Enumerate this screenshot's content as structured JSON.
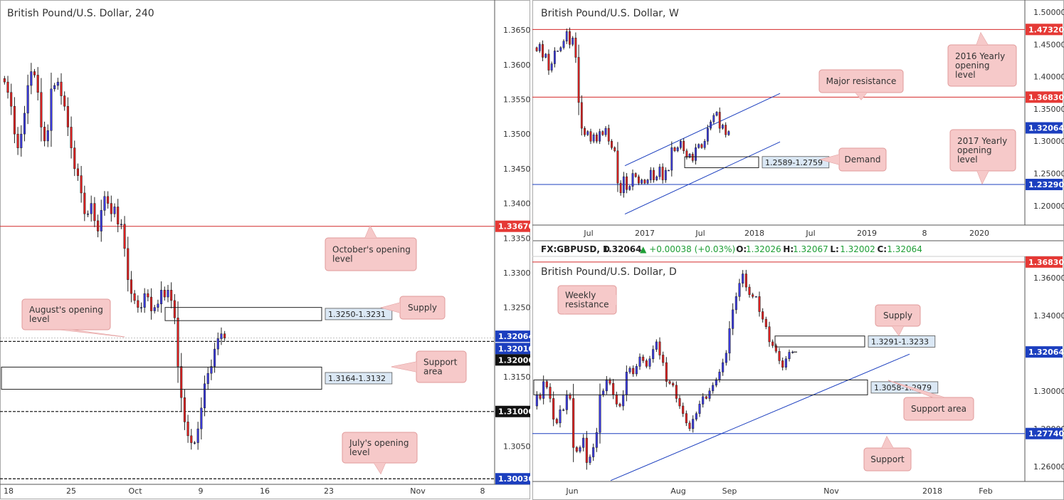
{
  "colors": {
    "bull": "#3a3ae0",
    "bear": "#e02020",
    "red_line": "#d42a2a",
    "blue_line": "#1c3fbf",
    "callout_fill": "#f6c9c9",
    "callout_stroke": "#e09a9a",
    "red_tag": "#e53935",
    "blue_tag": "#1c3fbf",
    "black_tag": "#111111",
    "box_label_fill": "#dbe8f5"
  },
  "charts": {
    "h4": {
      "title": "British Pound/U.S. Dollar, 240",
      "price_labels": [
        "1.36500",
        "1.36000",
        "1.35500",
        "1.35000",
        "1.34500",
        "1.34000",
        "1.33500",
        "1.33000",
        "1.32500",
        "1.31500",
        "1.30500"
      ],
      "time_labels": [
        "18",
        "25",
        "Oct",
        "9",
        "16",
        "23",
        "Nov",
        "8"
      ],
      "tags": {
        "octopen": "1.33670",
        "last": "1.32064",
        "r1": "1.32010",
        "r2": "1.32000",
        "s1": "1.31000",
        "july": "1.30030"
      },
      "zones": {
        "supply": "1.3250-1.3231",
        "support": "1.3164-1.3132"
      },
      "callouts": {
        "supply": "Supply",
        "support": "Support area",
        "october": "October's opening level",
        "august": "August's opening level",
        "july": "July's opening level"
      }
    },
    "weekly": {
      "title": "British Pound/U.S. Dollar, W",
      "price_labels": [
        "1.50000",
        "1.45000",
        "1.40000",
        "1.35000",
        "1.30000",
        "1.25000",
        "1.20000"
      ],
      "time_labels": [
        "Jul",
        "2017",
        "Jul",
        "2018",
        "Jul",
        "2019",
        "8",
        "2020"
      ],
      "tags": {
        "y2016": "1.47320",
        "major": "1.36830",
        "last": "1.32064",
        "y2017": "1.23290"
      },
      "zones": {
        "demand": "1.2589-1.2759"
      },
      "callouts": {
        "major": "Major resistance",
        "demand": "Demand",
        "y2016": "2016 Yearly opening level",
        "y2017": "2017 Yearly opening level"
      }
    },
    "daily": {
      "title": "British Pound/U.S. Dollar, D",
      "info": {
        "symbol": "FX:GBPUSD, D",
        "price": "1.32064",
        "change": "▲ +0.00038 (+0.03%)",
        "o_lbl": "O:",
        "o": "1.32026",
        "h_lbl": "H:",
        "h": "1.32067",
        "l_lbl": "L:",
        "l": "1.32002",
        "c_lbl": "C:",
        "c": "1.32064"
      },
      "price_labels": [
        "1.36000",
        "1.34000",
        "1.30000",
        "1.28000",
        "1.26000"
      ],
      "time_labels": [
        "Jun",
        "Aug",
        "Sep",
        "Nov",
        "2018",
        "Feb"
      ],
      "tags": {
        "weekly": "1.36830",
        "last": "1.32064",
        "support": "1.27740"
      },
      "zones": {
        "supply": "1.3291-1.3233",
        "support": "1.3058-1.2979"
      },
      "callouts": {
        "weekly": "Weekly resistance",
        "supply": "Supply",
        "support_area": "Support area",
        "support": "Support"
      }
    }
  },
  "chart_data": [
    {
      "type": "candlestick",
      "title": "British Pound/U.S. Dollar, 240",
      "ylim": [
        1.2995,
        1.3685
      ],
      "levels": [
        {
          "label": "October's opening level",
          "value": 1.3367
        },
        {
          "label": "August's opening level",
          "value": 1.3201
        },
        {
          "value": 1.32
        },
        {
          "value": 1.31
        },
        {
          "label": "July's opening level",
          "value": 1.3003
        }
      ],
      "zones": [
        {
          "label": "Supply",
          "range": [
            1.3231,
            1.325
          ]
        },
        {
          "label": "Support area",
          "range": [
            1.3132,
            1.3164
          ]
        }
      ],
      "path": [
        1.358,
        1.3575,
        1.356,
        1.354,
        1.35,
        1.348,
        1.35,
        1.353,
        1.357,
        1.359,
        1.3585,
        1.356,
        1.351,
        1.349,
        1.3505,
        1.3565,
        1.357,
        1.3575,
        1.3555,
        1.354,
        1.351,
        1.348,
        1.345,
        1.344,
        1.3415,
        1.3385,
        1.3385,
        1.34,
        1.3375,
        1.336,
        1.339,
        1.341,
        1.34,
        1.3385,
        1.3395,
        1.337,
        1.337,
        1.3335,
        1.329,
        1.327,
        1.326,
        1.325,
        1.325,
        1.327,
        1.3265,
        1.3245,
        1.325,
        1.3255,
        1.3275,
        1.3265,
        1.3275,
        1.326,
        1.3235,
        1.3165,
        1.312,
        1.3085,
        1.3065,
        1.3055,
        1.3055,
        1.3075,
        1.3105,
        1.314,
        1.3155,
        1.3165,
        1.319,
        1.3205,
        1.3212,
        1.3206
      ]
    },
    {
      "type": "candlestick",
      "title": "British Pound/U.S. Dollar, W",
      "ylim": [
        1.17,
        1.51
      ],
      "levels": [
        {
          "label": "2016 Yearly opening level",
          "value": 1.4732
        },
        {
          "label": "Major resistance",
          "value": 1.3683
        },
        {
          "label": "2017 Yearly opening level",
          "value": 1.2329
        }
      ],
      "zones": [
        {
          "label": "Demand",
          "range": [
            1.2589,
            1.2759
          ]
        }
      ],
      "path": [
        1.445,
        1.44,
        1.45,
        1.43,
        1.435,
        1.41,
        1.42,
        1.44,
        1.44,
        1.445,
        1.455,
        1.47,
        1.45,
        1.46,
        1.43,
        1.36,
        1.32,
        1.31,
        1.315,
        1.3,
        1.31,
        1.3,
        1.315,
        1.31,
        1.32,
        1.3,
        1.29,
        1.285,
        1.235,
        1.22,
        1.245,
        1.225,
        1.23,
        1.25,
        1.245,
        1.235,
        1.24,
        1.235,
        1.24,
        1.255,
        1.24,
        1.245,
        1.26,
        1.24,
        1.255,
        1.255,
        1.29,
        1.285,
        1.29,
        1.3,
        1.285,
        1.275,
        1.28,
        1.27,
        1.29,
        1.295,
        1.29,
        1.3,
        1.32,
        1.33,
        1.34,
        1.345,
        1.32,
        1.325,
        1.31,
        1.315
      ]
    },
    {
      "type": "candlestick",
      "title": "British Pound/U.S. Dollar, D",
      "ylim": [
        1.252,
        1.369
      ],
      "levels": [
        {
          "label": "Weekly resistance",
          "value": 1.3683
        },
        {
          "label": "Support",
          "value": 1.2774
        }
      ],
      "zones": [
        {
          "label": "Supply",
          "range": [
            1.3233,
            1.3291
          ]
        },
        {
          "label": "Support area",
          "range": [
            1.2979,
            1.3058
          ]
        }
      ],
      "path": [
        1.292,
        1.298,
        1.296,
        1.305,
        1.302,
        1.296,
        1.285,
        1.283,
        1.29,
        1.29,
        1.298,
        1.296,
        1.27,
        1.268,
        1.27,
        1.275,
        1.262,
        1.265,
        1.27,
        1.278,
        1.298,
        1.3,
        1.306,
        1.304,
        1.298,
        1.293,
        1.292,
        1.298,
        1.31,
        1.312,
        1.309,
        1.313,
        1.318,
        1.316,
        1.313,
        1.317,
        1.322,
        1.326,
        1.319,
        1.315,
        1.305,
        1.304,
        1.303,
        1.296,
        1.292,
        1.288,
        1.283,
        1.28,
        1.285,
        1.288,
        1.293,
        1.297,
        1.296,
        1.3,
        1.303,
        1.306,
        1.31,
        1.315,
        1.32,
        1.333,
        1.343,
        1.35,
        1.357,
        1.362,
        1.355,
        1.351,
        1.35,
        1.35,
        1.342,
        1.338,
        1.334,
        1.326,
        1.324,
        1.321,
        1.316,
        1.3125,
        1.317,
        1.3205,
        1.3206
      ]
    }
  ]
}
